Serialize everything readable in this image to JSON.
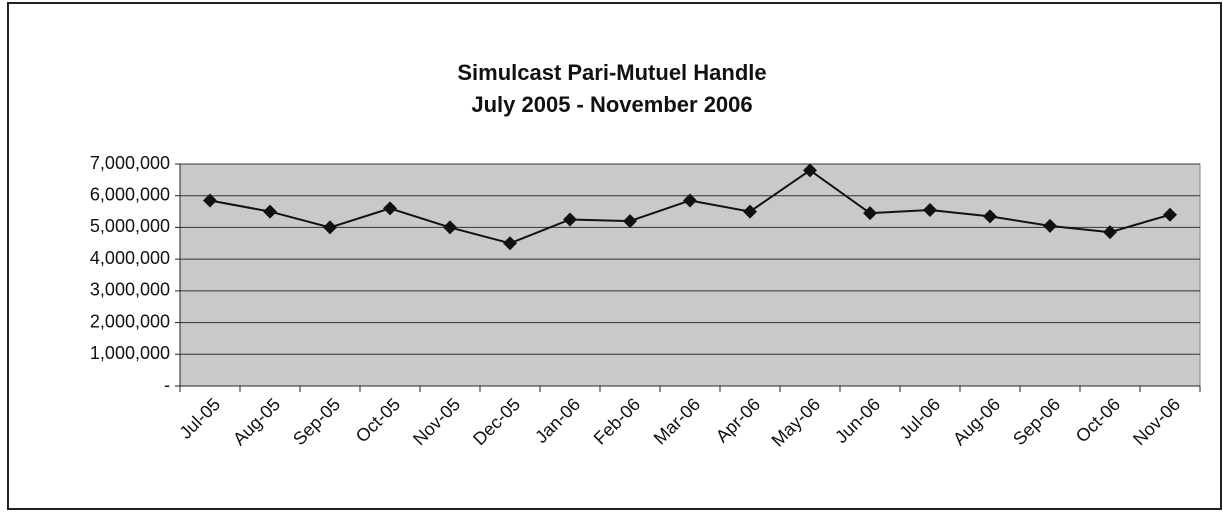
{
  "chart_data": {
    "type": "line",
    "title": "Simulcast Pari-Mutuel Handle",
    "subtitle": "July 2005 - November 2006",
    "categories": [
      "Jul-05",
      "Aug-05",
      "Sep-05",
      "Oct-05",
      "Nov-05",
      "Dec-05",
      "Jan-06",
      "Feb-06",
      "Mar-06",
      "Apr-06",
      "May-06",
      "Jun-06",
      "Jul-06",
      "Aug-06",
      "Sep-06",
      "Oct-06",
      "Nov-06"
    ],
    "series": [
      {
        "color": "#111111",
        "values": [
          5850000,
          5500000,
          5000000,
          5600000,
          5000000,
          4500000,
          5250000,
          5200000,
          5850000,
          5500000,
          6800000,
          5450000,
          5550000,
          5350000,
          5050000,
          4850000,
          5400000
        ]
      }
    ],
    "ylim": [
      0,
      7000000
    ],
    "yticks": [
      {
        "value": 0,
        "label": "-"
      },
      {
        "value": 1000000,
        "label": "1,000,000"
      },
      {
        "value": 2000000,
        "label": "2,000,000"
      },
      {
        "value": 3000000,
        "label": "3,000,000"
      },
      {
        "value": 4000000,
        "label": "4,000,000"
      },
      {
        "value": 5000000,
        "label": "5,000,000"
      },
      {
        "value": 6000000,
        "label": "6,000,000"
      },
      {
        "value": 7000000,
        "label": "7,000,000"
      }
    ],
    "grid": true
  }
}
